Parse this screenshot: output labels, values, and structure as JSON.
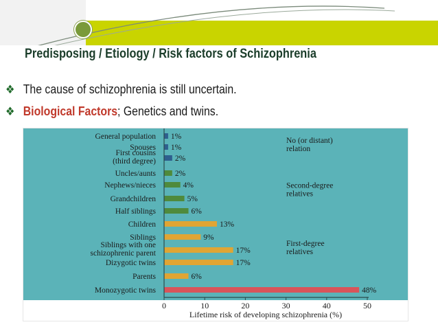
{
  "slide": {
    "title": "Predisposing  / Etiology / Risk factors of Schizophrenia",
    "logo_text": "",
    "bullets": [
      {
        "text": "The cause of schizophrenia is still uncertain.",
        "highlight": ""
      },
      {
        "text": "; Genetics and twins.",
        "highlight": "Biological Factors"
      }
    ],
    "colors": {
      "title": "#1b3d2a",
      "accent_band": "#c9d400",
      "highlight": "#c0392b",
      "bullet_icon": "#1f6a2a"
    },
    "icon_names": {
      "bullet": "diamond-bullet-icon",
      "logo": "logo-seal-icon"
    }
  },
  "chart_data": {
    "type": "bar",
    "orientation": "horizontal",
    "categories": [
      "General population",
      "Spouses",
      "First cousins\n(third degree)",
      "Uncles/aunts",
      "Nephews/nieces",
      "Grandchildren",
      "Half siblings",
      "Children",
      "Siblings",
      "Siblings with one\nschizophrenic parent",
      "Dizygotic twins",
      "Parents",
      "Monozygotic twins"
    ],
    "values": [
      1,
      1,
      2,
      2,
      4,
      5,
      6,
      13,
      9,
      17,
      17,
      6,
      48
    ],
    "value_labels": [
      "1%",
      "1%",
      "2%",
      "2%",
      "4%",
      "5%",
      "6%",
      "13%",
      "9%",
      "17%",
      "17%",
      "6%",
      "48%"
    ],
    "groups": [
      {
        "label": "No (or distant)\nrelation",
        "start": 0,
        "end": 2,
        "color": "#2e5f8e"
      },
      {
        "label": "Second-degree\nrelatives",
        "start": 3,
        "end": 6,
        "color": "#4f8a3c"
      },
      {
        "label": "First-degree\nrelatives",
        "start": 7,
        "end": 11,
        "color": "#e0a534"
      },
      {
        "label": "",
        "start": 12,
        "end": 12,
        "color": "#d9545a"
      }
    ],
    "xlabel": "Lifetime risk of developing schizophrenia (%)",
    "ylabel": "",
    "xlim": [
      0,
      50
    ],
    "xticks": [
      0,
      10,
      20,
      30,
      40,
      50
    ],
    "grid": false,
    "colors": {
      "background": "#5bb3b8",
      "axis": "#2a4a4c"
    }
  }
}
